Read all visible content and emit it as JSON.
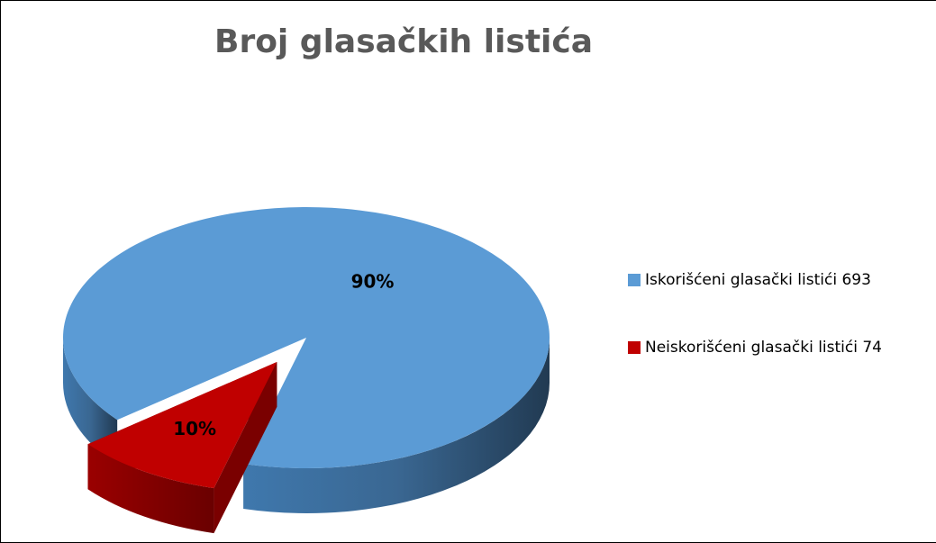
{
  "chart_data": {
    "type": "pie",
    "title": "Broj glasačkih listića",
    "categories": [
      "Iskorišćeni glasački listići 693",
      "Neiskorišćeni glasački listići 74"
    ],
    "values": [
      90,
      10
    ],
    "value_labels": [
      "90%",
      "10%"
    ],
    "colors": [
      "#5b9bd5",
      "#c00000"
    ],
    "legend": "right"
  }
}
